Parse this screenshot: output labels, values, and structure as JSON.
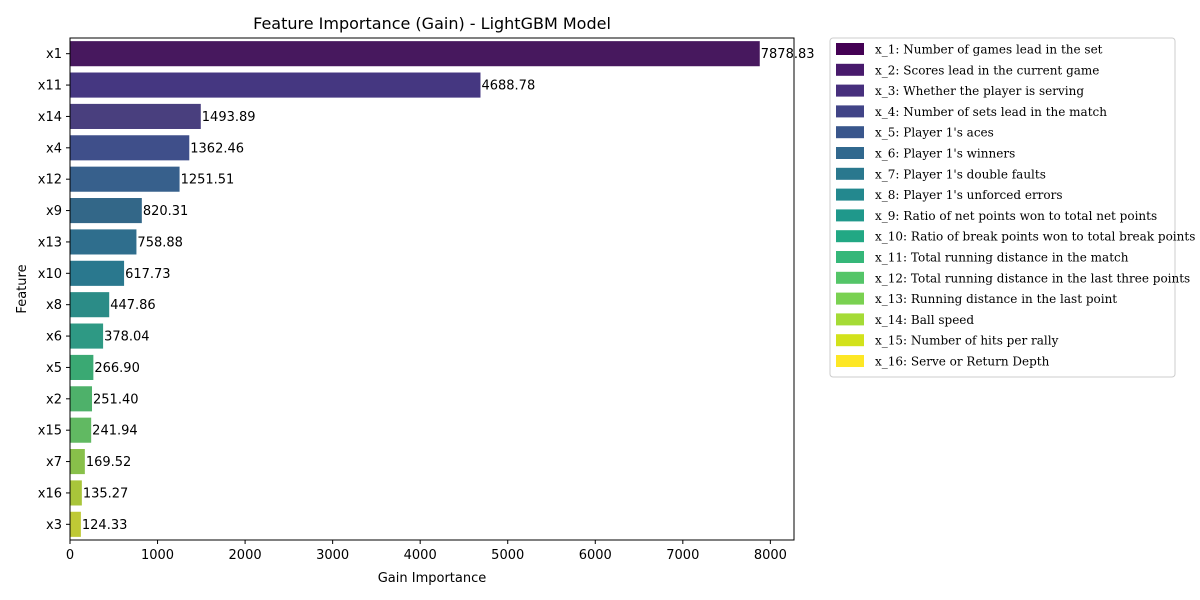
{
  "chart_data": {
    "type": "bar",
    "orientation": "horizontal",
    "title": "Feature Importance (Gain) - LightGBM Model",
    "xlabel": "Gain Importance",
    "ylabel": "Feature",
    "xlim": [
      0,
      8270
    ],
    "xticks": [
      0,
      1000,
      2000,
      3000,
      4000,
      5000,
      6000,
      7000,
      8000
    ],
    "grid": false,
    "legend_position": "outside-right",
    "categories": [
      "x1",
      "x11",
      "x14",
      "x4",
      "x12",
      "x9",
      "x13",
      "x10",
      "x8",
      "x6",
      "x5",
      "x2",
      "x15",
      "x7",
      "x16",
      "x3"
    ],
    "values": [
      7878.83,
      4688.78,
      1493.89,
      1362.46,
      1251.51,
      820.31,
      758.88,
      617.73,
      447.86,
      378.04,
      266.9,
      251.4,
      241.94,
      169.52,
      135.27,
      124.33
    ],
    "value_labels": [
      "7878.83",
      "4688.78",
      "1493.89",
      "1362.46",
      "1251.51",
      "820.31",
      "758.88",
      "617.73",
      "447.86",
      "378.04",
      "266.90",
      "251.40",
      "241.94",
      "169.52",
      "135.27",
      "124.33"
    ],
    "bar_colors": [
      "#47185e",
      "#453781",
      "#493f7e",
      "#3f4f8a",
      "#37608c",
      "#336788",
      "#2f6e8d",
      "#2a788e",
      "#2b8c87",
      "#2e9984",
      "#3aa973",
      "#4eb16a",
      "#61b962",
      "#88c04a",
      "#a9c53a",
      "#bfc935"
    ],
    "legend": {
      "items": [
        {
          "label": "x_1: Number of games lead in the set",
          "color": "#440154"
        },
        {
          "label": "x_2: Scores lead in the current game",
          "color": "#481a6c"
        },
        {
          "label": "x_3: Whether the player is serving",
          "color": "#472f7d"
        },
        {
          "label": "x_4: Number of sets lead in the match",
          "color": "#414487"
        },
        {
          "label": "x_5: Player 1's aces",
          "color": "#39568c"
        },
        {
          "label": "x_6: Player 1's winners",
          "color": "#31688e"
        },
        {
          "label": "x_7: Player 1's double faults",
          "color": "#2a788e"
        },
        {
          "label": "x_8: Player 1's unforced errors",
          "color": "#23888e"
        },
        {
          "label": "x_9: Ratio of net points won to total net points",
          "color": "#1f988b"
        },
        {
          "label": "x_10: Ratio of break points won to total break points",
          "color": "#22a884"
        },
        {
          "label": "x_11: Total running distance in the match",
          "color": "#35b779"
        },
        {
          "label": "x_12: Total running distance in the last three points",
          "color": "#54c568"
        },
        {
          "label": "x_13: Running distance in the last point",
          "color": "#7ad151"
        },
        {
          "label": "x_14: Ball speed",
          "color": "#a5db36"
        },
        {
          "label": "x_15: Number of hits per rally",
          "color": "#d2e21b"
        },
        {
          "label": "x_16: Serve or Return Depth",
          "color": "#fde725"
        }
      ]
    }
  }
}
